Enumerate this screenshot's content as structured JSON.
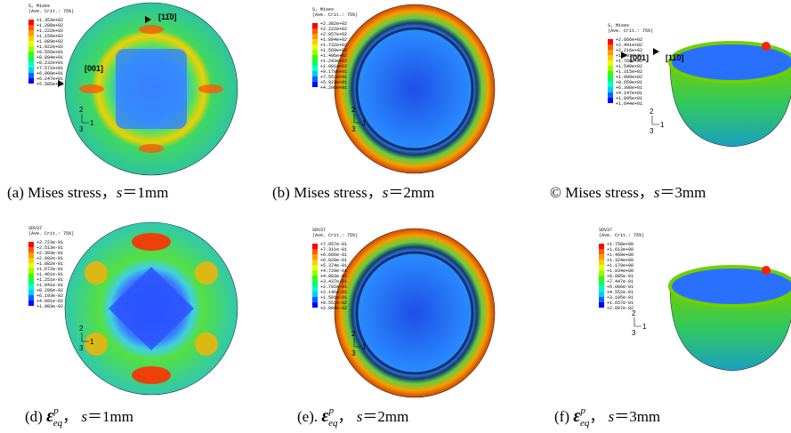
{
  "panels": [
    {
      "legend": {
        "title": "S, Mises",
        "subtitle": "(Ave. Crit.: 75%)",
        "values": [
          "+1.353e+02",
          "+1.288e+02",
          "+1.222e+02",
          "+1.156e+02",
          "+1.089e+02",
          "+1.022e+02",
          "+9.556e+01",
          "+8.894e+01",
          "+8.232e+01",
          "+7.571e+01",
          "+6.909e+01",
          "+6.247e+01",
          "+5.585e+01"
        ]
      },
      "annotations": [
        "[11̄0]",
        "[001]"
      ],
      "triad": [
        "2",
        "1",
        "3"
      ],
      "caption": {
        "prefix": "(a) Mises stress，",
        "var": "s",
        "rest": "＝1mm"
      }
    },
    {
      "legend": {
        "title": "S, Mises",
        "subtitle": "(Ave. Crit.: 75%)",
        "values": [
          "+2.382e+02",
          "+2.222e+02",
          "+2.057e+02",
          "+1.894e+02",
          "+1.732e+02",
          "+1.569e+02",
          "+1.406e+02",
          "+1.243e+02",
          "+1.081e+02",
          "+9.178e+01",
          "+7.551e+01",
          "+5.923e+01",
          "+4.296e+01"
        ]
      },
      "annotations": [],
      "triad": [
        "2",
        "1",
        "3"
      ],
      "caption": {
        "prefix": "(b) Mises stress，",
        "var": "s",
        "rest": "＝2mm"
      }
    },
    {
      "legend": {
        "title": "S, Mises",
        "subtitle": "(Ave. Crit.: 75%)",
        "values": [
          "+2.666e+02",
          "+2.441e+02",
          "+2.216e+02",
          "+1.991e+02",
          "+1.766e+02",
          "+1.540e+02",
          "+1.315e+02",
          "+1.090e+02",
          "+8.650e+01",
          "+6.398e+01",
          "+4.147e+01",
          "+1.895e+01",
          "+1.644e+01"
        ]
      },
      "annotations": [
        "[001]",
        "[11̄0]"
      ],
      "triad": [
        "2",
        "1",
        "3"
      ],
      "caption": {
        "prefix": "© Mises stress，",
        "var": "s",
        "rest": "＝3mm"
      }
    },
    {
      "legend": {
        "title": "SDV37",
        "subtitle": "(Ave. Crit.: 75%)",
        "values": [
          "+2.723e-01",
          "+2.513e-01",
          "+2.303e-01",
          "+2.092e-01",
          "+1.882e-01",
          "+1.672e-01",
          "+1.461e-01",
          "+1.251e-01",
          "+1.041e-01",
          "+8.296e-02",
          "+6.193e-02",
          "+4.091e-02",
          "+1.983e-02"
        ]
      },
      "annotations": [],
      "triad": [
        "2",
        "1",
        "3"
      ],
      "caption": {
        "prefix": "(d) ",
        "symbol": "ε",
        "sub": "eq",
        "sup": "p",
        "sep": "， ",
        "var": "s",
        "rest": "＝1mm"
      }
    },
    {
      "legend": {
        "title": "SDV37",
        "subtitle": "(Ave. Crit.: 75%)",
        "values": [
          "+7.957e-01",
          "+7.311e-01",
          "+6.666e-01",
          "+6.020e-01",
          "+5.374e-01",
          "+4.729e-01",
          "+4.083e-01",
          "+3.437e-01",
          "+2.792e-01",
          "+2.146e-01",
          "+1.501e-01",
          "+8.551e-02",
          "+2.094e-02"
        ]
      },
      "annotations": [],
      "triad": [
        "2",
        "1",
        "3"
      ],
      "caption": {
        "prefix": "(e). ",
        "symbol": "ε",
        "sub": "eq",
        "sup": "p",
        "sep": "， ",
        "var": "s",
        "rest": "＝2mm"
      }
    },
    {
      "legend": {
        "title": "SDV37",
        "subtitle": "(Ave. Crit.: 75%)",
        "values": [
          "+1.758e+00",
          "+1.613e+00",
          "+1.469e+00",
          "+1.324e+00",
          "+1.179e+00",
          "+1.034e+00",
          "+8.895e-01",
          "+7.447e-01",
          "+6.000e-01",
          "+4.552e-01",
          "+3.105e-01",
          "+1.657e-01",
          "+2.097e-02"
        ]
      },
      "annotations": [],
      "triad": [
        "2",
        "1",
        "3"
      ],
      "caption": {
        "prefix": "(f) ",
        "symbol": "ε",
        "sub": "eq",
        "sup": "p",
        "sep": "， ",
        "var": "s",
        "rest": "＝3mm"
      }
    }
  ]
}
